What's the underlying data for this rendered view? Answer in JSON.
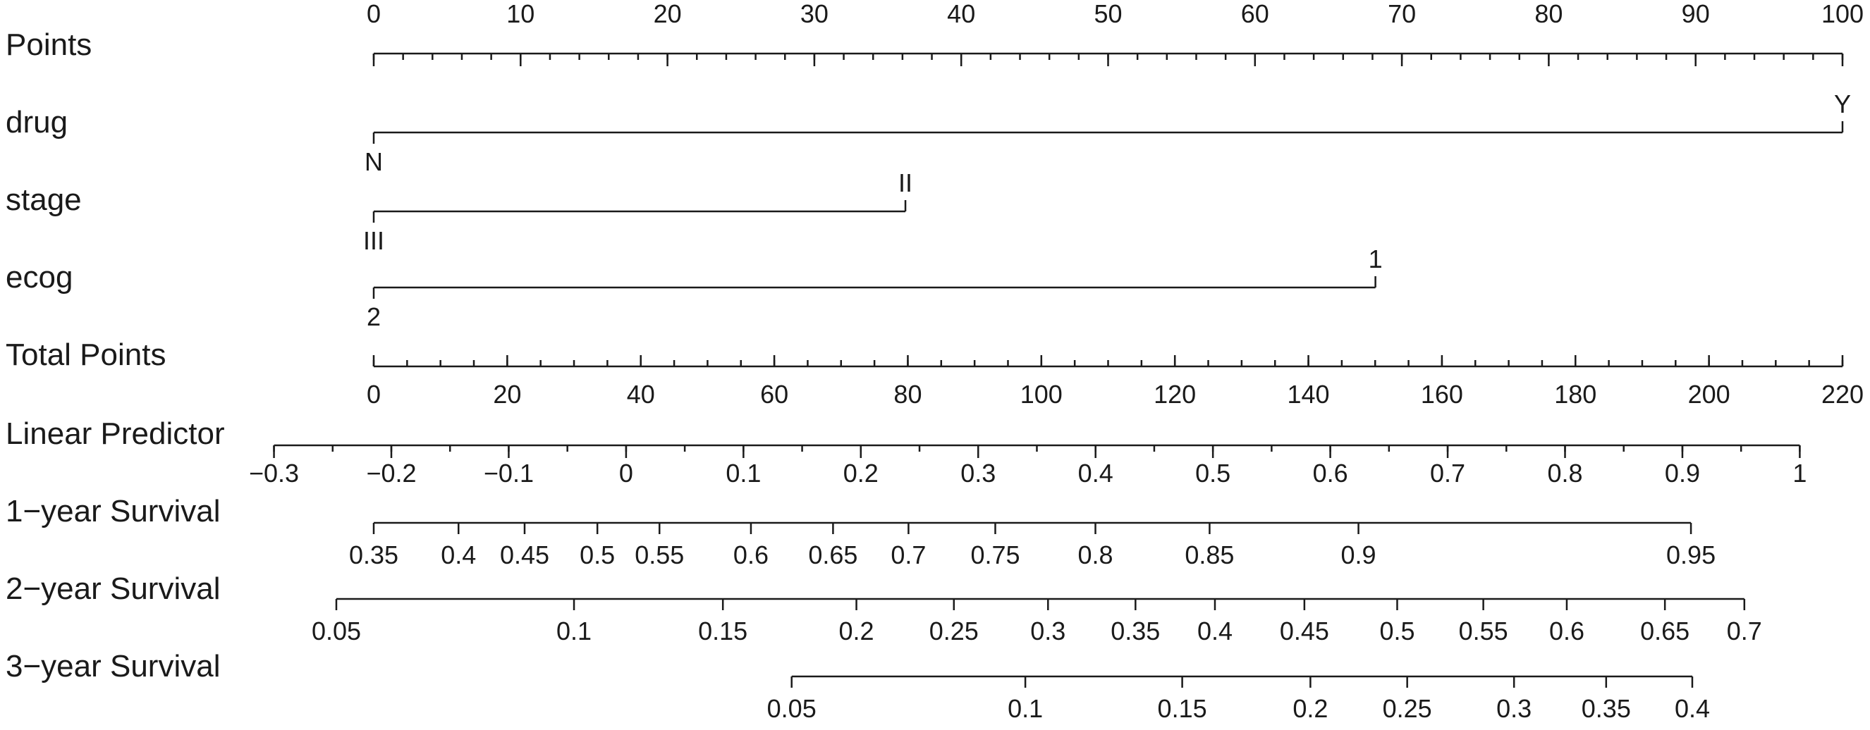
{
  "chart_data": {
    "type": "nomogram",
    "points_scale": {
      "label": "Points",
      "ticks": [
        0,
        10,
        20,
        30,
        40,
        50,
        60,
        70,
        80,
        90,
        100
      ],
      "tick_labels": [
        "0",
        "10",
        "20",
        "30",
        "40",
        "50",
        "60",
        "70",
        "80",
        "90",
        "100"
      ],
      "minor_step": 2
    },
    "variables": [
      {
        "name": "drug",
        "levels": [
          {
            "label": "N",
            "points": 0,
            "side": "below"
          },
          {
            "label": "Y",
            "points": 100,
            "side": "above"
          }
        ]
      },
      {
        "name": "stage",
        "levels": [
          {
            "label": "III",
            "points": 0,
            "side": "below"
          },
          {
            "label": "II",
            "points": 36.2,
            "side": "above"
          }
        ]
      },
      {
        "name": "ecog",
        "levels": [
          {
            "label": "2",
            "points": 0,
            "side": "below"
          },
          {
            "label": "1",
            "points": 68.2,
            "side": "above"
          }
        ]
      }
    ],
    "total_points": {
      "label": "Total Points",
      "ticks": [
        0,
        20,
        40,
        60,
        80,
        100,
        120,
        140,
        160,
        180,
        200,
        220
      ],
      "tick_labels": [
        "0",
        "20",
        "40",
        "60",
        "80",
        "100",
        "120",
        "140",
        "160",
        "180",
        "200",
        "220"
      ],
      "minor_step": 5,
      "range": [
        0,
        220
      ]
    },
    "linear_predictor": {
      "label": "Linear Predictor",
      "ticks": [
        -0.3,
        -0.2,
        -0.1,
        0,
        0.1,
        0.2,
        0.3,
        0.4,
        0.5,
        0.6,
        0.7,
        0.8,
        0.9,
        1
      ],
      "tick_labels": [
        "−0.3",
        "−0.2",
        "−0.1",
        "0",
        "0.1",
        "0.2",
        "0.3",
        "0.4",
        "0.5",
        "0.6",
        "0.7",
        "0.8",
        "0.9",
        "1"
      ],
      "minor_step": 0.05,
      "total_points_at_zero": 37.8,
      "total_points_per_unit": 175.8
    },
    "survival_scales": [
      {
        "label": "1−year Survival",
        "ticks": [
          0.35,
          0.4,
          0.45,
          0.5,
          0.55,
          0.6,
          0.65,
          0.7,
          0.75,
          0.8,
          0.85,
          0.9,
          0.95
        ],
        "tick_labels": [
          "0.35",
          "0.4",
          "0.45",
          "0.5",
          "0.55",
          "0.6",
          "0.65",
          "0.7",
          "0.75",
          "0.8",
          "0.85",
          "0.9",
          "0.95"
        ],
        "total_points_at_ticks": [
          0,
          12.7,
          22.6,
          33.5,
          42.8,
          56.5,
          68.8,
          80.1,
          93.1,
          108.1,
          125.2,
          147.5,
          197.3
        ]
      },
      {
        "label": "2−year Survival",
        "ticks": [
          0.05,
          0.1,
          0.15,
          0.2,
          0.25,
          0.3,
          0.35,
          0.4,
          0.45,
          0.5,
          0.55,
          0.6,
          0.65,
          0.7
        ],
        "tick_labels": [
          "0.05",
          "0.1",
          "0.15",
          "0.2",
          "0.25",
          "0.3",
          "0.35",
          "0.4",
          "0.45",
          "0.5",
          "0.55",
          "0.6",
          "0.65",
          "0.7"
        ],
        "total_points_at_ticks": [
          -5.6,
          30,
          52.3,
          72.3,
          86.9,
          101,
          114.1,
          126,
          139.4,
          153.3,
          166.2,
          178.7,
          193.4,
          205.3
        ]
      },
      {
        "label": "3−year Survival",
        "ticks": [
          0.05,
          0.1,
          0.15,
          0.2,
          0.25,
          0.3,
          0.35,
          0.4
        ],
        "tick_labels": [
          "0.05",
          "0.1",
          "0.15",
          "0.2",
          "0.25",
          "0.3",
          "0.35",
          "0.4"
        ],
        "total_points_at_ticks": [
          62.6,
          97.6,
          121.1,
          140.3,
          154.8,
          170.8,
          184.6,
          197.5
        ]
      }
    ]
  }
}
